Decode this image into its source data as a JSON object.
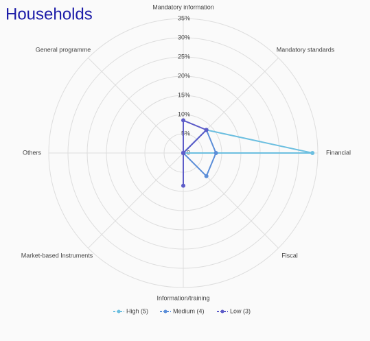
{
  "chart_data": {
    "type": "radar",
    "title": "Households",
    "categories": [
      "Mandatory information",
      "Mandatory standards",
      "Financial",
      "Fiscal",
      "Information/training",
      "Market-based Instruments",
      "Others",
      "General programme"
    ],
    "series": [
      {
        "name": "High (5)",
        "color": "#6cbfe0",
        "values": [
          0,
          8.5,
          33.6,
          0,
          0,
          0,
          0,
          0
        ]
      },
      {
        "name": "Medium (4)",
        "color": "#5b8ed8",
        "values": [
          0,
          8.5,
          8.5,
          8.5,
          0,
          0,
          0,
          0
        ]
      },
      {
        "name": "Low (3)",
        "color": "#5d5cc8",
        "values": [
          8.5,
          8.5,
          0,
          0,
          8.5,
          0,
          0,
          0
        ]
      }
    ],
    "rlim": [
      0,
      35
    ],
    "rticks": [
      0,
      {
        "value": 5,
        "label": "5%"
      },
      {
        "value": 10,
        "label": "10%"
      },
      {
        "value": 15,
        "label": "15%"
      },
      {
        "value": 20,
        "label": "20%"
      },
      {
        "value": 25,
        "label": "25%"
      },
      {
        "value": 30,
        "label": "30%"
      },
      {
        "value": 35,
        "label": "35%"
      }
    ],
    "grid": true,
    "legend": "bottom"
  }
}
